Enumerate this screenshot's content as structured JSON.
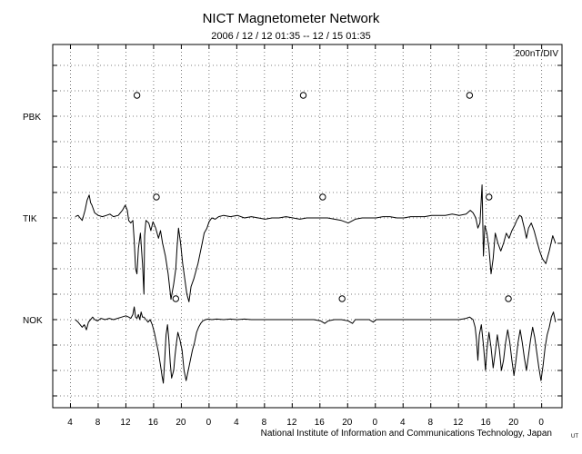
{
  "title": "NICT Magnetometer Network",
  "subtitle": "2006 / 12 / 12   01:35 -- 12 / 15   01:35",
  "footer": "National Institute of Information and Communications Technology, Japan",
  "footer_tag": "UT",
  "chart_data": {
    "type": "line",
    "title": "NICT Magnetometer Network",
    "time_range": [
      "2006/12/12 01:35",
      "2006/12/15 01:35"
    ],
    "scale_label": "200nT/DIV",
    "x_tick_labels": [
      "4",
      "8",
      "12",
      "16",
      "20",
      "0",
      "4",
      "8",
      "12",
      "16",
      "20",
      "0",
      "4",
      "8",
      "12",
      "16",
      "20",
      "0"
    ],
    "y_labels": [
      "PBK",
      "TIK",
      "NOK"
    ],
    "grid": true,
    "series": [
      {
        "name": "PBK",
        "markers_x": [
          11.5,
          35.5,
          59.5
        ],
        "values": []
      },
      {
        "name": "TIK",
        "markers_x": [
          14.3,
          38.3,
          62.3
        ],
        "values": [
          [
            2.6,
            0.05
          ],
          [
            3.0,
            0.1
          ],
          [
            3.3,
            0.0
          ],
          [
            3.6,
            -0.1
          ],
          [
            4.0,
            0.3
          ],
          [
            4.3,
            0.7
          ],
          [
            4.6,
            0.9
          ],
          [
            4.8,
            0.6
          ],
          [
            5.0,
            0.5
          ],
          [
            5.4,
            0.2
          ],
          [
            5.9,
            0.1
          ],
          [
            6.5,
            0.05
          ],
          [
            7.1,
            0.1
          ],
          [
            7.6,
            0.15
          ],
          [
            8.1,
            0.05
          ],
          [
            8.8,
            0.1
          ],
          [
            9.4,
            0.3
          ],
          [
            9.8,
            0.5
          ],
          [
            10.1,
            0.3
          ],
          [
            10.3,
            -0.1
          ],
          [
            10.6,
            -0.2
          ],
          [
            10.9,
            -0.1
          ],
          [
            11.1,
            -0.9
          ],
          [
            11.3,
            -2.0
          ],
          [
            11.5,
            -2.2
          ],
          [
            11.7,
            -1.2
          ],
          [
            12.0,
            -0.6
          ],
          [
            12.3,
            -1.8
          ],
          [
            12.5,
            -3.0
          ],
          [
            12.6,
            -0.7
          ],
          [
            12.8,
            -0.1
          ],
          [
            13.2,
            -0.2
          ],
          [
            13.5,
            -0.5
          ],
          [
            13.8,
            -0.15
          ],
          [
            14.2,
            -0.4
          ],
          [
            14.6,
            -0.8
          ],
          [
            14.9,
            -0.5
          ],
          [
            15.2,
            -1.0
          ],
          [
            15.6,
            -1.5
          ],
          [
            16.0,
            -2.2
          ],
          [
            16.4,
            -3.2
          ],
          [
            16.8,
            -2.6
          ],
          [
            17.1,
            -2.0
          ],
          [
            17.3,
            -1.1
          ],
          [
            17.5,
            -0.4
          ],
          [
            17.8,
            -1.0
          ],
          [
            18.1,
            -1.8
          ],
          [
            18.4,
            -2.4
          ],
          [
            18.7,
            -3.0
          ],
          [
            19.0,
            -3.3
          ],
          [
            19.3,
            -2.7
          ],
          [
            19.7,
            -2.4
          ],
          [
            20.0,
            -2.1
          ],
          [
            20.3,
            -1.8
          ],
          [
            20.6,
            -1.4
          ],
          [
            20.9,
            -1.0
          ],
          [
            21.2,
            -0.6
          ],
          [
            21.6,
            -0.4
          ],
          [
            21.9,
            -0.15
          ],
          [
            22.3,
            0.0
          ],
          [
            22.8,
            -0.05
          ],
          [
            23.3,
            0.05
          ],
          [
            24.0,
            0.1
          ],
          [
            25.0,
            0.05
          ],
          [
            26.0,
            0.1
          ],
          [
            27.0,
            0.0
          ],
          [
            28.0,
            0.05
          ],
          [
            29.0,
            0.0
          ],
          [
            30.0,
            -0.05
          ],
          [
            31.0,
            0.0
          ],
          [
            32.0,
            0.0
          ],
          [
            33.0,
            0.05
          ],
          [
            34.0,
            0.0
          ],
          [
            35.0,
            -0.05
          ],
          [
            36.0,
            0.0
          ],
          [
            37.0,
            0.0
          ],
          [
            38.0,
            0.0
          ],
          [
            39.0,
            0.0
          ],
          [
            40.0,
            -0.05
          ],
          [
            41.0,
            -0.1
          ],
          [
            42.0,
            -0.2
          ],
          [
            43.0,
            -0.05
          ],
          [
            44.0,
            0.0
          ],
          [
            45.0,
            0.0
          ],
          [
            46.0,
            0.0
          ],
          [
            47.0,
            0.05
          ],
          [
            48.0,
            0.05
          ],
          [
            49.0,
            0.0
          ],
          [
            50.0,
            0.0
          ],
          [
            51.0,
            0.05
          ],
          [
            52.0,
            0.05
          ],
          [
            53.0,
            0.05
          ],
          [
            54.0,
            0.1
          ],
          [
            55.0,
            0.1
          ],
          [
            56.0,
            0.1
          ],
          [
            57.0,
            0.15
          ],
          [
            58.0,
            0.1
          ],
          [
            59.0,
            0.15
          ],
          [
            59.6,
            0.3
          ],
          [
            60.0,
            0.2
          ],
          [
            60.4,
            0.0
          ],
          [
            60.7,
            -0.4
          ],
          [
            61.0,
            -0.2
          ],
          [
            61.3,
            1.3
          ],
          [
            61.5,
            -1.5
          ],
          [
            61.7,
            -0.3
          ],
          [
            62.0,
            -0.6
          ],
          [
            62.3,
            -1.2
          ],
          [
            62.6,
            -2.2
          ],
          [
            62.9,
            -1.6
          ],
          [
            63.2,
            -0.6
          ],
          [
            63.6,
            -1.0
          ],
          [
            64.0,
            -1.3
          ],
          [
            64.4,
            -1.0
          ],
          [
            64.8,
            -0.6
          ],
          [
            65.2,
            -0.8
          ],
          [
            65.6,
            -0.5
          ],
          [
            66.0,
            -0.3
          ],
          [
            66.3,
            -0.1
          ],
          [
            66.7,
            0.1
          ],
          [
            67.0,
            0.05
          ],
          [
            67.4,
            -0.4
          ],
          [
            67.7,
            -0.8
          ],
          [
            68.0,
            -0.4
          ],
          [
            68.4,
            -0.2
          ],
          [
            68.8,
            -0.5
          ],
          [
            69.2,
            -0.9
          ],
          [
            69.6,
            -1.3
          ],
          [
            70.0,
            -1.6
          ],
          [
            70.5,
            -1.8
          ],
          [
            71.0,
            -1.3
          ],
          [
            71.5,
            -0.7
          ],
          [
            71.9,
            -1.0
          ]
        ]
      },
      {
        "name": "NOK",
        "markers_x": [
          17.1,
          41.1,
          65.1
        ],
        "values": [
          [
            2.6,
            0.0
          ],
          [
            3.0,
            -0.1
          ],
          [
            3.3,
            -0.2
          ],
          [
            3.6,
            -0.3
          ],
          [
            3.9,
            -0.2
          ],
          [
            4.2,
            -0.4
          ],
          [
            4.5,
            -0.1
          ],
          [
            4.8,
            0.0
          ],
          [
            5.1,
            0.1
          ],
          [
            5.4,
            0.0
          ],
          [
            5.8,
            -0.05
          ],
          [
            6.3,
            0.05
          ],
          [
            6.9,
            0.0
          ],
          [
            7.5,
            0.05
          ],
          [
            8.1,
            0.0
          ],
          [
            8.7,
            0.05
          ],
          [
            9.3,
            0.1
          ],
          [
            9.9,
            0.15
          ],
          [
            10.3,
            0.1
          ],
          [
            10.6,
            0.05
          ],
          [
            10.9,
            0.2
          ],
          [
            11.1,
            0.5
          ],
          [
            11.3,
            0.1
          ],
          [
            11.5,
            0.05
          ],
          [
            11.7,
            0.2
          ],
          [
            11.9,
            0.0
          ],
          [
            12.1,
            0.3
          ],
          [
            12.3,
            0.1
          ],
          [
            12.5,
            0.1
          ],
          [
            12.8,
            0.0
          ],
          [
            13.1,
            -0.1
          ],
          [
            13.4,
            0.0
          ],
          [
            13.7,
            -0.2
          ],
          [
            14.0,
            -0.5
          ],
          [
            14.3,
            -0.9
          ],
          [
            14.6,
            -1.3
          ],
          [
            14.9,
            -1.8
          ],
          [
            15.1,
            -2.2
          ],
          [
            15.3,
            -2.5
          ],
          [
            15.5,
            -1.6
          ],
          [
            15.7,
            -0.6
          ],
          [
            15.9,
            -0.2
          ],
          [
            16.1,
            -0.8
          ],
          [
            16.3,
            -1.7
          ],
          [
            16.5,
            -2.3
          ],
          [
            16.8,
            -2.0
          ],
          [
            17.0,
            -1.4
          ],
          [
            17.2,
            -0.9
          ],
          [
            17.4,
            -0.5
          ],
          [
            17.7,
            -0.8
          ],
          [
            18.0,
            -1.2
          ],
          [
            18.3,
            -2.0
          ],
          [
            18.6,
            -2.4
          ],
          [
            18.9,
            -2.0
          ],
          [
            19.2,
            -1.6
          ],
          [
            19.5,
            -1.2
          ],
          [
            19.8,
            -0.9
          ],
          [
            20.1,
            -0.5
          ],
          [
            20.4,
            -0.3
          ],
          [
            20.7,
            -0.15
          ],
          [
            21.0,
            -0.05
          ],
          [
            21.4,
            0.0
          ],
          [
            21.8,
            0.02
          ],
          [
            22.3,
            0.0
          ],
          [
            23.0,
            0.02
          ],
          [
            24.0,
            0.0
          ],
          [
            25.0,
            0.02
          ],
          [
            26.0,
            0.0
          ],
          [
            27.0,
            0.02
          ],
          [
            28.0,
            0.0
          ],
          [
            29.0,
            0.0
          ],
          [
            30.0,
            0.0
          ],
          [
            31.0,
            0.0
          ],
          [
            32.0,
            0.0
          ],
          [
            33.0,
            0.0
          ],
          [
            34.0,
            0.0
          ],
          [
            35.0,
            0.0
          ],
          [
            36.0,
            0.0
          ],
          [
            37.0,
            0.0
          ],
          [
            38.0,
            -0.05
          ],
          [
            38.6,
            -0.15
          ],
          [
            39.1,
            -0.05
          ],
          [
            40.0,
            0.0
          ],
          [
            41.0,
            0.0
          ],
          [
            42.0,
            -0.05
          ],
          [
            42.6,
            -0.15
          ],
          [
            43.0,
            0.0
          ],
          [
            44.0,
            0.0
          ],
          [
            45.0,
            0.0
          ],
          [
            45.6,
            -0.1
          ],
          [
            46.0,
            0.0
          ],
          [
            47.0,
            0.0
          ],
          [
            48.0,
            0.0
          ],
          [
            49.0,
            0.0
          ],
          [
            50.0,
            0.0
          ],
          [
            51.0,
            0.0
          ],
          [
            52.0,
            0.0
          ],
          [
            53.0,
            0.0
          ],
          [
            54.0,
            0.0
          ],
          [
            55.0,
            0.0
          ],
          [
            56.0,
            0.0
          ],
          [
            57.0,
            0.0
          ],
          [
            58.0,
            0.0
          ],
          [
            59.0,
            0.05
          ],
          [
            59.5,
            0.1
          ],
          [
            60.0,
            0.0
          ],
          [
            60.3,
            -0.3
          ],
          [
            60.5,
            -0.8
          ],
          [
            60.7,
            -1.6
          ],
          [
            60.9,
            -0.6
          ],
          [
            61.2,
            -0.2
          ],
          [
            61.5,
            -1.0
          ],
          [
            61.8,
            -2.0
          ],
          [
            62.0,
            -1.2
          ],
          [
            62.3,
            -0.5
          ],
          [
            62.6,
            -1.1
          ],
          [
            62.9,
            -1.9
          ],
          [
            63.2,
            -1.3
          ],
          [
            63.5,
            -0.6
          ],
          [
            63.8,
            -1.2
          ],
          [
            64.1,
            -2.0
          ],
          [
            64.4,
            -1.6
          ],
          [
            64.7,
            -0.9
          ],
          [
            65.0,
            -0.4
          ],
          [
            65.3,
            -0.9
          ],
          [
            65.6,
            -1.6
          ],
          [
            65.9,
            -2.2
          ],
          [
            66.2,
            -1.6
          ],
          [
            66.5,
            -0.9
          ],
          [
            66.8,
            -0.4
          ],
          [
            67.1,
            -0.9
          ],
          [
            67.4,
            -1.5
          ],
          [
            67.7,
            -2.0
          ],
          [
            68.0,
            -1.4
          ],
          [
            68.3,
            -0.8
          ],
          [
            68.6,
            -0.3
          ],
          [
            68.9,
            -0.7
          ],
          [
            69.2,
            -1.3
          ],
          [
            69.5,
            -1.9
          ],
          [
            69.8,
            -2.4
          ],
          [
            70.1,
            -1.8
          ],
          [
            70.4,
            -1.1
          ],
          [
            70.7,
            -0.6
          ],
          [
            71.0,
            -0.3
          ],
          [
            71.3,
            0.1
          ],
          [
            71.6,
            0.3
          ],
          [
            71.9,
            -0.1
          ]
        ]
      }
    ]
  }
}
